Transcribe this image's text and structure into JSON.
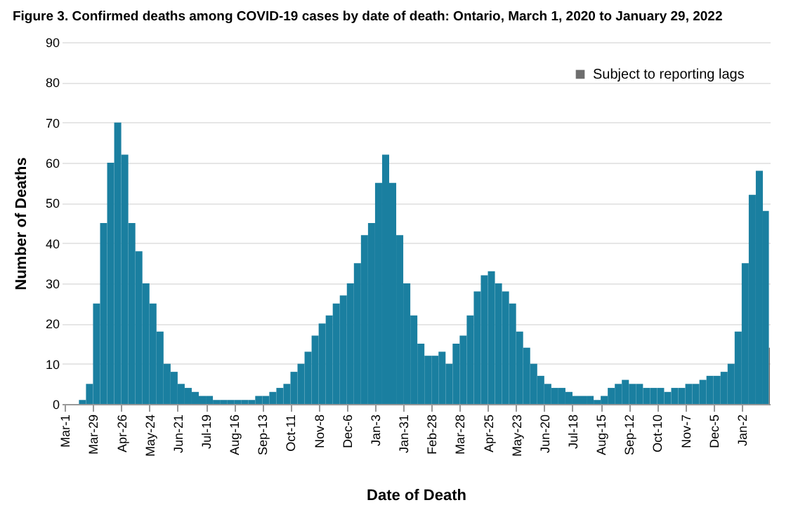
{
  "chart_data": {
    "type": "bar",
    "title": "Figure 3. Confirmed deaths among COVID-19 cases by date of death: Ontario, March 1, 2020 to January 29, 2022",
    "xlabel": "Date of Death",
    "ylabel": "Number of Deaths",
    "series": [
      {
        "color": "#1a7fa0",
        "x": [
          "2020-03-01",
          "2020-03-08",
          "2020-03-15",
          "2020-03-22",
          "2020-03-29",
          "2020-04-05",
          "2020-04-12",
          "2020-04-19",
          "2020-04-26",
          "2020-05-03",
          "2020-05-10",
          "2020-05-17",
          "2020-05-24",
          "2020-05-31",
          "2020-06-07",
          "2020-06-14",
          "2020-06-21",
          "2020-06-28",
          "2020-07-05",
          "2020-07-12",
          "2020-07-19",
          "2020-07-26",
          "2020-08-02",
          "2020-08-09",
          "2020-08-16",
          "2020-08-23",
          "2020-08-30",
          "2020-09-06",
          "2020-09-13",
          "2020-09-20",
          "2020-09-27",
          "2020-10-04",
          "2020-10-11",
          "2020-10-18",
          "2020-10-25",
          "2020-11-01",
          "2020-11-08",
          "2020-11-15",
          "2020-11-22",
          "2020-11-29",
          "2020-12-06",
          "2020-12-13",
          "2020-12-20",
          "2020-12-27",
          "2021-01-03",
          "2021-01-10",
          "2021-01-17",
          "2021-01-24",
          "2021-01-31",
          "2021-02-07",
          "2021-02-14",
          "2021-02-21",
          "2021-02-28",
          "2021-03-07",
          "2021-03-14",
          "2021-03-21",
          "2021-03-28",
          "2021-04-04",
          "2021-04-11",
          "2021-04-18",
          "2021-04-25",
          "2021-05-02",
          "2021-05-09",
          "2021-05-16",
          "2021-05-23",
          "2021-05-30",
          "2021-06-06",
          "2021-06-13",
          "2021-06-20",
          "2021-06-27",
          "2021-07-04",
          "2021-07-11",
          "2021-07-18",
          "2021-07-25",
          "2021-08-01",
          "2021-08-08",
          "2021-08-15",
          "2021-08-22",
          "2021-08-29",
          "2021-09-05",
          "2021-09-12",
          "2021-09-19",
          "2021-09-26",
          "2021-10-03",
          "2021-10-10",
          "2021-10-17",
          "2021-10-24",
          "2021-10-31",
          "2021-11-07",
          "2021-11-14",
          "2021-11-21",
          "2021-11-28",
          "2021-12-05",
          "2021-12-12",
          "2021-12-19",
          "2021-12-26",
          "2022-01-02",
          "2022-01-09",
          "2022-01-16",
          "2022-01-23"
        ],
        "values": [
          0,
          0,
          1,
          5,
          25,
          45,
          60,
          70,
          62,
          45,
          38,
          30,
          25,
          18,
          10,
          8,
          5,
          4,
          3,
          2,
          2,
          1,
          1,
          1,
          1,
          1,
          1,
          2,
          2,
          3,
          4,
          5,
          8,
          10,
          13,
          17,
          20,
          22,
          25,
          27,
          30,
          35,
          42,
          45,
          55,
          62,
          55,
          42,
          30,
          22,
          15,
          12,
          12,
          13,
          10,
          15,
          17,
          22,
          28,
          32,
          33,
          30,
          28,
          25,
          18,
          14,
          10,
          7,
          5,
          4,
          4,
          3,
          2,
          2,
          2,
          1,
          2,
          4,
          5,
          6,
          5,
          5,
          4,
          4,
          4,
          3,
          4,
          4,
          5,
          5,
          6,
          7,
          7,
          8,
          10,
          18,
          35,
          52,
          58,
          48
        ]
      },
      {
        "name": "Subject to reporting lags",
        "color": "#6e6e6e",
        "x": [
          "2022-01-29"
        ],
        "values": [
          14
        ]
      }
    ],
    "xlim": [
      "2020-02-27",
      "2022-01-30"
    ],
    "xticks": [
      {
        "value": "2020-03-01",
        "label": "Mar-1"
      },
      {
        "value": "2020-03-29",
        "label": "Mar-29"
      },
      {
        "value": "2020-04-26",
        "label": "Apr-26"
      },
      {
        "value": "2020-05-24",
        "label": "May-24"
      },
      {
        "value": "2020-06-21",
        "label": "Jun-21"
      },
      {
        "value": "2020-07-19",
        "label": "Jul-19"
      },
      {
        "value": "2020-08-16",
        "label": "Aug-16"
      },
      {
        "value": "2020-09-13",
        "label": "Sep-13"
      },
      {
        "value": "2020-10-11",
        "label": "Oct-11"
      },
      {
        "value": "2020-11-08",
        "label": "Nov-8"
      },
      {
        "value": "2020-12-06",
        "label": "Dec-6"
      },
      {
        "value": "2021-01-03",
        "label": "Jan-3"
      },
      {
        "value": "2021-01-31",
        "label": "Jan-31"
      },
      {
        "value": "2021-02-28",
        "label": "Feb-28"
      },
      {
        "value": "2021-03-28",
        "label": "Mar-28"
      },
      {
        "value": "2021-04-25",
        "label": "Apr-25"
      },
      {
        "value": "2021-05-23",
        "label": "May-23"
      },
      {
        "value": "2021-06-20",
        "label": "Jun-20"
      },
      {
        "value": "2021-07-18",
        "label": "Jul-18"
      },
      {
        "value": "2021-08-15",
        "label": "Aug-15"
      },
      {
        "value": "2021-09-12",
        "label": "Sep-12"
      },
      {
        "value": "2021-10-10",
        "label": "Oct-10"
      },
      {
        "value": "2021-11-07",
        "label": "Nov-7"
      },
      {
        "value": "2021-12-05",
        "label": "Dec-5"
      },
      {
        "value": "2022-01-02",
        "label": "Jan-2"
      }
    ],
    "ylim": [
      0,
      90
    ],
    "yticks": [
      0,
      10,
      20,
      30,
      40,
      50,
      60,
      70,
      80,
      90
    ],
    "grid": "y",
    "legend": "top right"
  }
}
